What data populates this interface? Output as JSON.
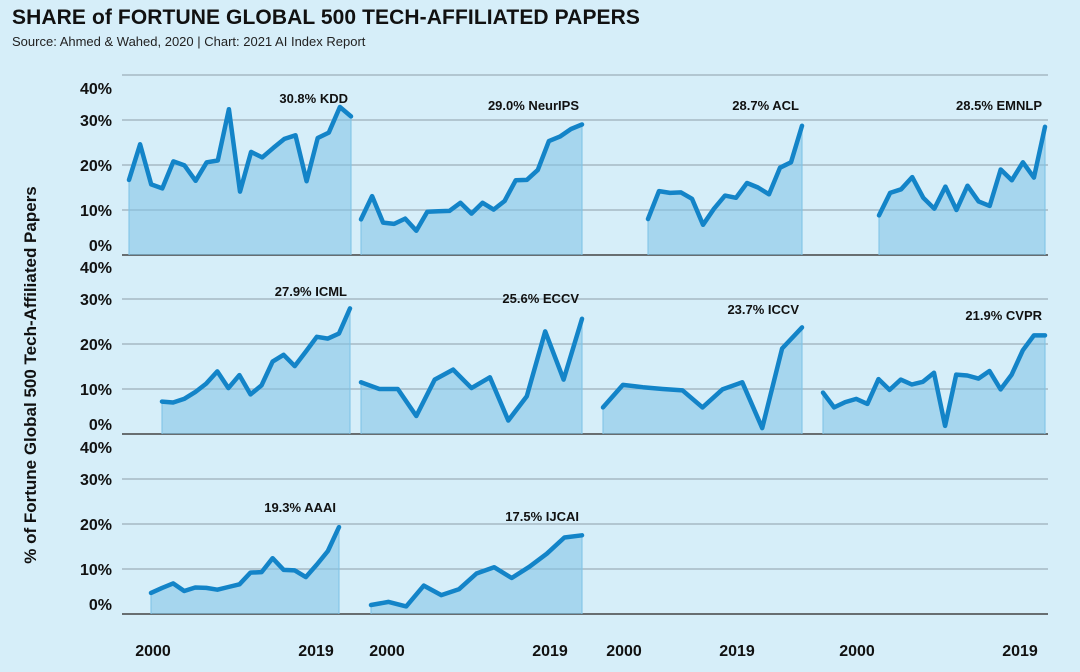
{
  "chart_data": {
    "type": "area",
    "title": "SHARE of FORTUNE GLOBAL 500 TECH-AFFILIATED PAPERS",
    "subtitle": "Source: Ahmed & Wahed, 2020 | Chart: 2021 AI Index Report",
    "ylabel": "% of Fortune Global 500 Tech-Affiliated Papers",
    "xlabel": "",
    "ylim": [
      0,
      40
    ],
    "yticks": [
      "0%",
      "10%",
      "20%",
      "30%",
      "40%"
    ],
    "xticks": [
      "2000",
      "2019"
    ],
    "grid": true,
    "legend": "none",
    "panels": [
      {
        "name": "KDD",
        "annotation": "30.8% KDD",
        "final_value": 30.8,
        "row": 0,
        "col": 0,
        "values": [
          16.7,
          24.6,
          15.7,
          14.8,
          20.8,
          19.9,
          16.5,
          20.6,
          21.0,
          32.4,
          14.1,
          22.9,
          21.7,
          23.8,
          25.8,
          26.6,
          16.4,
          26.0,
          27.2,
          32.9,
          30.8
        ]
      },
      {
        "name": "NeurIPS",
        "annotation": "29.0% NeurIPS",
        "final_value": 29.0,
        "row": 0,
        "col": 1,
        "values": [
          7.9,
          13.1,
          7.2,
          6.9,
          8.1,
          5.4,
          9.6,
          9.7,
          9.8,
          11.6,
          9.2,
          11.6,
          10.1,
          12.0,
          16.6,
          16.7,
          18.9,
          25.3,
          26.3,
          28.0,
          29.0
        ]
      },
      {
        "name": "ACL",
        "annotation": "28.7% ACL",
        "final_value": 28.7,
        "row": 0,
        "col": 2,
        "values": [
          8.0,
          14.2,
          13.8,
          13.9,
          12.5,
          6.7,
          10.3,
          13.2,
          12.7,
          16.0,
          15.0,
          13.5,
          19.4,
          20.6,
          28.7
        ]
      },
      {
        "name": "EMNLP",
        "annotation": "28.5% EMNLP",
        "final_value": 28.5,
        "row": 0,
        "col": 3,
        "values": [
          8.8,
          13.8,
          14.6,
          17.3,
          12.7,
          10.3,
          15.2,
          10.0,
          15.4,
          11.9,
          10.9,
          19.0,
          16.6,
          20.6,
          17.2,
          28.5
        ]
      },
      {
        "name": "ICML",
        "annotation": "27.9% ICML",
        "final_value": 27.9,
        "row": 1,
        "col": 0,
        "values": [
          7.2,
          7.0,
          7.8,
          9.3,
          11.2,
          13.9,
          10.2,
          13.1,
          8.8,
          10.8,
          16.1,
          17.6,
          15.1,
          18.3,
          21.6,
          21.2,
          22.3,
          27.9
        ]
      },
      {
        "name": "ECCV",
        "annotation": "25.6% ECCV",
        "final_value": 25.6,
        "row": 1,
        "col": 1,
        "values": [
          11.5,
          10.0,
          10.0,
          4.0,
          12.1,
          14.3,
          10.2,
          12.6,
          3.0,
          8.4,
          22.8,
          12.1,
          25.6
        ]
      },
      {
        "name": "ICCV",
        "annotation": "23.7% ICCV",
        "final_value": 23.7,
        "row": 1,
        "col": 2,
        "values": [
          5.9,
          10.9,
          10.4,
          10.0,
          9.7,
          5.9,
          9.9,
          11.5,
          1.3,
          19.0,
          23.7
        ]
      },
      {
        "name": "CVPR",
        "annotation": "21.9% CVPR",
        "final_value": 21.9,
        "row": 1,
        "col": 3,
        "values": [
          9.2,
          5.9,
          7.1,
          7.8,
          6.7,
          12.2,
          9.8,
          12.1,
          11.0,
          11.6,
          13.6,
          1.8,
          13.2,
          13.0,
          12.3,
          14.0,
          9.9,
          13.2,
          18.6,
          21.9,
          21.9
        ]
      },
      {
        "name": "AAAI",
        "annotation": "19.3% AAAI",
        "final_value": 19.3,
        "row": 2,
        "col": 0,
        "values": [
          4.7,
          5.8,
          6.8,
          5.1,
          5.9,
          5.8,
          5.4,
          6.0,
          6.6,
          9.2,
          9.3,
          12.4,
          9.8,
          9.7,
          8.2,
          11.0,
          14.0,
          19.3
        ]
      },
      {
        "name": "IJCAI",
        "annotation": "17.5% IJCAI",
        "final_value": 17.5,
        "row": 2,
        "col": 1,
        "values": [
          2.0,
          2.7,
          1.7,
          6.3,
          4.2,
          5.5,
          9.0,
          10.4,
          8.0,
          10.5,
          13.4,
          17.0,
          17.5
        ]
      }
    ]
  }
}
